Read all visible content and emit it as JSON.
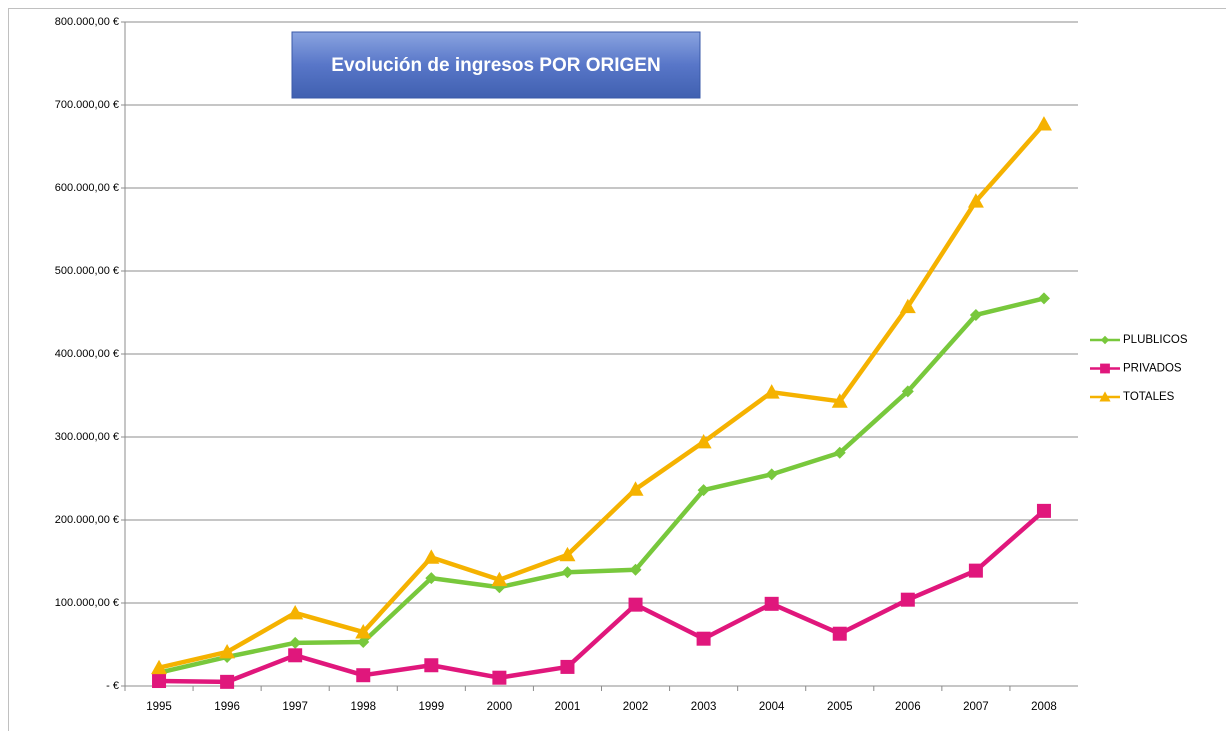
{
  "chart_data": {
    "type": "line",
    "title": "Evolución de ingresos POR ORIGEN",
    "categories": [
      "1995",
      "1996",
      "1997",
      "1998",
      "1999",
      "2000",
      "2001",
      "2002",
      "2003",
      "2004",
      "2005",
      "2006",
      "2007",
      "2008"
    ],
    "series": [
      {
        "name": "PLUBLICOS",
        "color": "#78c83c",
        "marker": "diamond",
        "values": [
          16000,
          35000,
          52000,
          53000,
          130000,
          119000,
          137000,
          140000,
          236000,
          255000,
          281000,
          355000,
          447000,
          467000
        ]
      },
      {
        "name": "PRIVADOS",
        "color": "#e0177c",
        "marker": "square",
        "values": [
          6000,
          5000,
          37000,
          13000,
          25000,
          10000,
          23000,
          98000,
          57000,
          99000,
          63000,
          104000,
          139000,
          211000
        ]
      },
      {
        "name": "TOTALES",
        "color": "#f5b200",
        "marker": "triangle",
        "values": [
          22000,
          41000,
          88000,
          65000,
          155000,
          128000,
          158000,
          237000,
          294000,
          354000,
          343000,
          457000,
          584000,
          677000
        ]
      }
    ],
    "ylim": [
      0,
      800000
    ],
    "yticks": [
      {
        "value": 0,
        "label": "-   €"
      },
      {
        "value": 100000,
        "label": "100.000,00 €"
      },
      {
        "value": 200000,
        "label": "200.000,00 €"
      },
      {
        "value": 300000,
        "label": "300.000,00 €"
      },
      {
        "value": 400000,
        "label": "400.000,00 €"
      },
      {
        "value": 500000,
        "label": "500.000,00 €"
      },
      {
        "value": 600000,
        "label": "600.000,00 €"
      },
      {
        "value": 700000,
        "label": "700.000,00 €"
      },
      {
        "value": 800000,
        "label": "800.000,00 €"
      }
    ],
    "grid": true,
    "legend": "right"
  }
}
